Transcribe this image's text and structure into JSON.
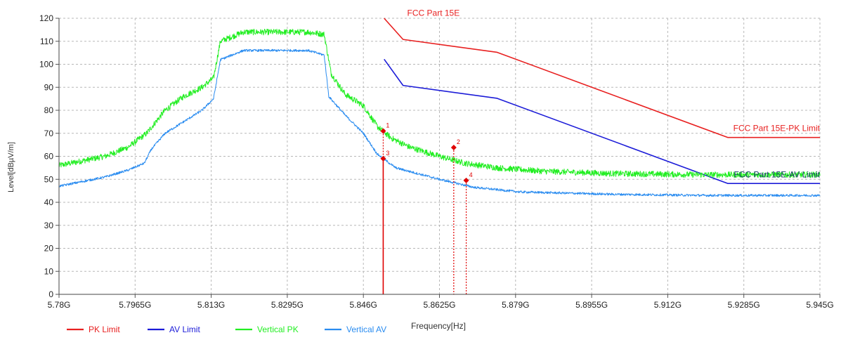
{
  "chart_data": {
    "type": "line",
    "title": "FCC Part 15E",
    "xlabel": "Frequency[Hz]",
    "ylabel": "Level[dBµV/m]",
    "xlim": [
      5.78,
      5.945
    ],
    "ylim": [
      0,
      120
    ],
    "grid": true,
    "legend_position": "bottom-left",
    "x_ticks": [
      5.78,
      5.7965,
      5.813,
      5.8295,
      5.846,
      5.8625,
      5.879,
      5.8955,
      5.912,
      5.9285,
      5.945
    ],
    "x_tick_labels": [
      "5.78G",
      "5.7965G",
      "5.813G",
      "5.8295G",
      "5.846G",
      "5.8625G",
      "5.879G",
      "5.8955G",
      "5.912G",
      "5.9285G",
      "5.945G"
    ],
    "y_ticks": [
      0,
      10,
      20,
      30,
      40,
      50,
      60,
      70,
      80,
      90,
      100,
      110,
      120
    ],
    "y_tick_labels": [
      "0",
      "10",
      "20",
      "30",
      "40",
      "50",
      "60",
      "70",
      "80",
      "90",
      "100",
      "110",
      "120"
    ],
    "series": [
      {
        "name": "PK Limit",
        "color": "#e82020",
        "noise": 0,
        "x": [
          5.8505,
          5.8546,
          5.875,
          5.925,
          5.945
        ],
        "y": [
          120,
          110.8,
          105.2,
          68.2,
          68.2
        ]
      },
      {
        "name": "AV Limit",
        "color": "#1c1cd8",
        "noise": 0,
        "x": [
          5.8505,
          5.8546,
          5.875,
          5.925,
          5.945
        ],
        "y": [
          102.2,
          90.8,
          85.2,
          48.2,
          48.2
        ]
      },
      {
        "name": "Vertical PK",
        "color": "#22ee22",
        "noise": 1.3,
        "x": [
          5.78,
          5.785,
          5.79,
          5.795,
          5.799,
          5.803,
          5.807,
          5.811,
          5.8135,
          5.815,
          5.82,
          5.826,
          5.83,
          5.834,
          5.8375,
          5.839,
          5.842,
          5.846,
          5.849,
          5.852,
          5.856,
          5.8625,
          5.868,
          5.875,
          5.885,
          5.9,
          5.92,
          5.945
        ],
        "y": [
          56,
          58,
          60,
          64,
          70,
          80,
          86,
          90,
          94,
          110,
          114,
          114,
          114,
          114,
          113,
          96,
          87,
          82,
          73,
          68,
          64,
          60,
          57,
          55,
          53.5,
          52.5,
          52,
          52
        ]
      },
      {
        "name": "Vertical AV",
        "color": "#2a8cf0",
        "noise": 0.5,
        "x": [
          5.78,
          5.785,
          5.79,
          5.795,
          5.7985,
          5.8,
          5.803,
          5.807,
          5.811,
          5.8135,
          5.815,
          5.82,
          5.826,
          5.83,
          5.834,
          5.8375,
          5.8385,
          5.842,
          5.846,
          5.849,
          5.853,
          5.8625,
          5.87,
          5.88,
          5.9,
          5.92,
          5.945
        ],
        "y": [
          47,
          49,
          51,
          54,
          57,
          63,
          70,
          75,
          80,
          85,
          102,
          106,
          106,
          106,
          106,
          104,
          86,
          78,
          70,
          61,
          55,
          50,
          46.5,
          44.5,
          43.5,
          43,
          43
        ]
      }
    ],
    "markers": [
      {
        "label": "1",
        "x": 5.8503,
        "y": 71,
        "line_style": "dotted",
        "line_to": 56
      },
      {
        "label": "2",
        "x": 5.8656,
        "y": 63.8,
        "line_style": "dotted",
        "line_to": 0
      },
      {
        "label": "3",
        "x": 5.8503,
        "y": 59,
        "line_style": "solid",
        "line_to": 0
      },
      {
        "label": "4",
        "x": 5.8683,
        "y": 49.5,
        "line_style": "dotted",
        "line_to": 0
      }
    ],
    "annotations": [
      {
        "text": "FCC Part 15E",
        "x": 5.8555,
        "y": 121,
        "color": "#e82020",
        "anchor": "start"
      },
      {
        "text": "FCC Part 15E-PK Limit",
        "x": 5.945,
        "y": 71,
        "color": "#e82020",
        "anchor": "end"
      },
      {
        "text": "FCC Part 15E-AV Limit",
        "x": 5.945,
        "y": 50.8,
        "color": "#1a3d6a",
        "anchor": "end"
      }
    ]
  }
}
